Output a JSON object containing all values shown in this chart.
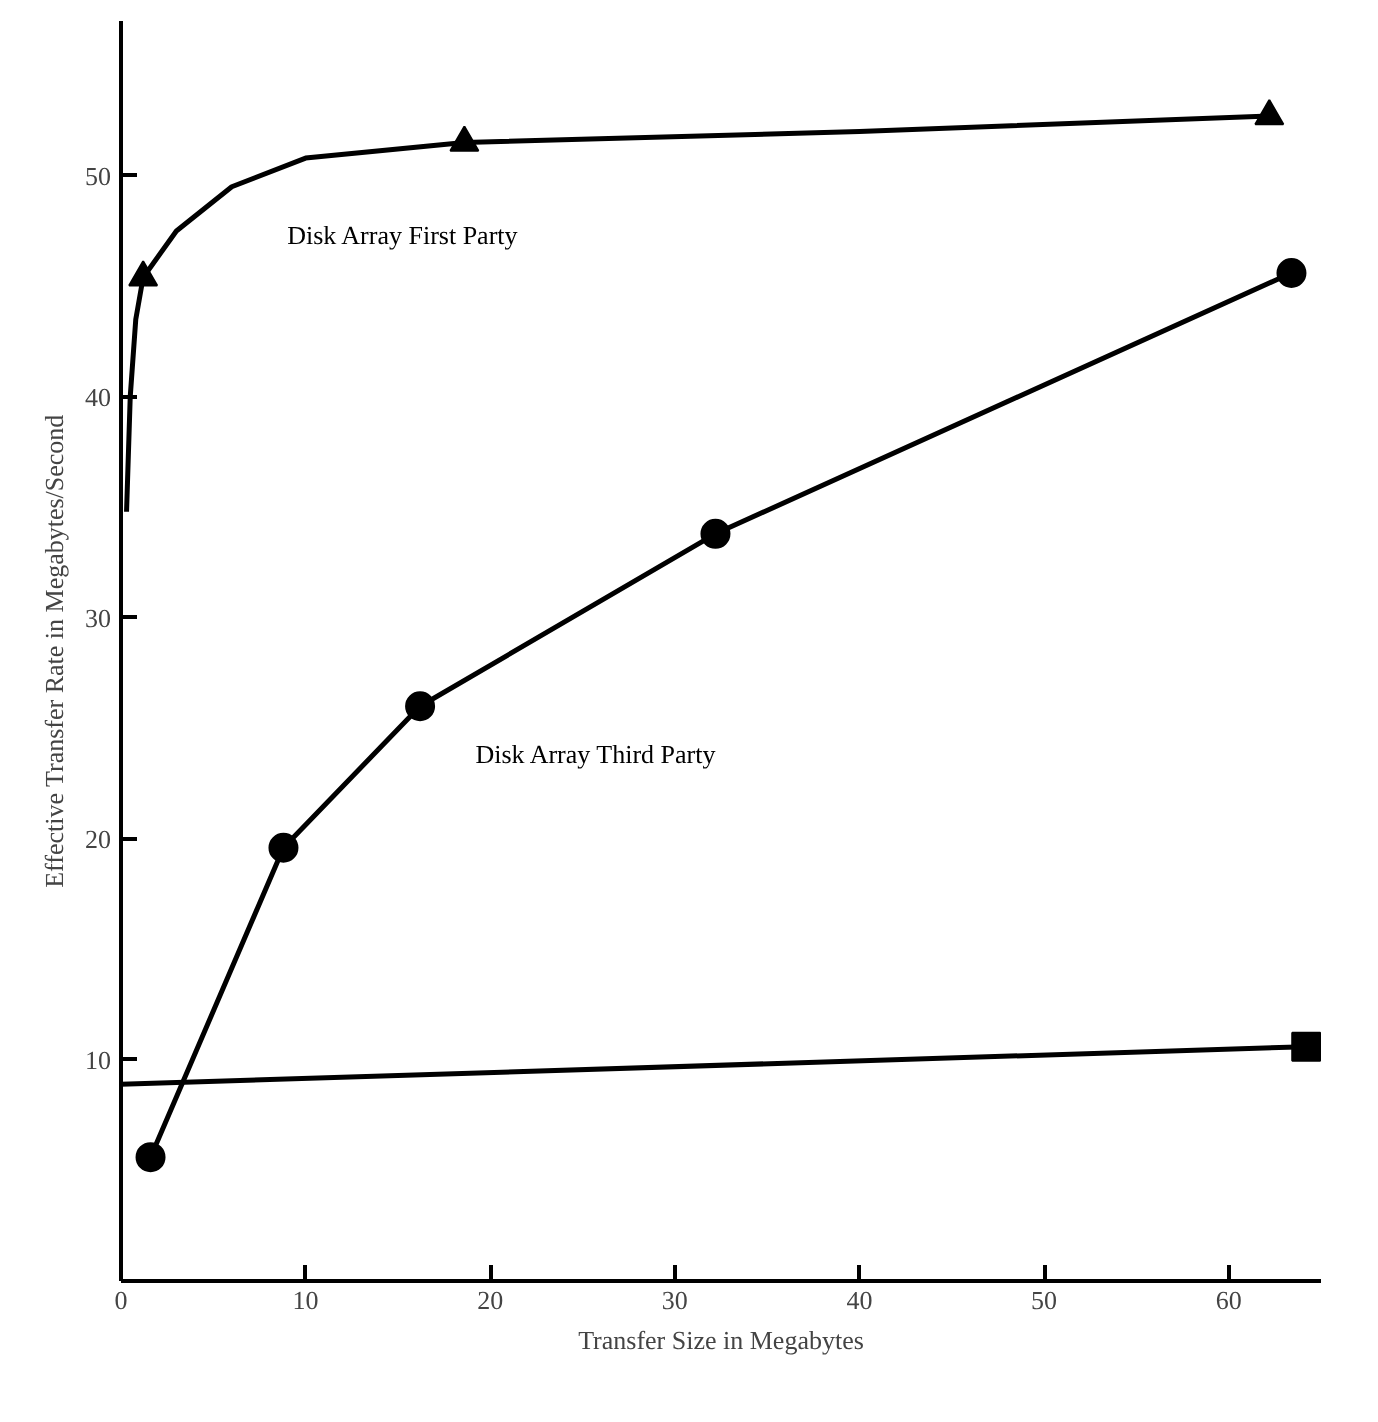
{
  "chart_data": {
    "type": "line",
    "xlabel": "Transfer Size in Megabytes",
    "ylabel": "Effective Transfer Rate in Megabytes/Second",
    "xlim": [
      0,
      65
    ],
    "ylim": [
      0,
      57
    ],
    "xticks": [
      0,
      10,
      20,
      30,
      40,
      50,
      60
    ],
    "yticks": [
      10,
      20,
      30,
      40,
      50
    ],
    "grid": false,
    "series": [
      {
        "name": "Disk Array First Party",
        "color": "#000000",
        "marker": "none",
        "x": [
          0.3,
          0.5,
          0.8,
          1.2,
          3,
          6,
          10,
          18.6,
          40,
          62.2
        ],
        "values": [
          34.8,
          40,
          43.5,
          45.4,
          47.5,
          49.5,
          50.8,
          51.5,
          52,
          52.7
        ]
      },
      {
        "type": "scatter",
        "color": "#000000",
        "marker": "triangle",
        "x": [
          1.2,
          18.6,
          62.2
        ],
        "values": [
          45.4,
          51.5,
          52.7
        ]
      },
      {
        "name": "Disk Array Third Party",
        "color": "#000000",
        "marker": "circle",
        "x": [
          1.6,
          8.8,
          16.2,
          32.2,
          63.4
        ],
        "values": [
          5.6,
          19.6,
          26,
          33.8,
          45.6
        ]
      },
      {
        "color": "#000000",
        "marker": "none",
        "x": [
          0,
          64.2
        ],
        "values": [
          8.9,
          10.6
        ]
      },
      {
        "type": "scatter",
        "color": "#000000",
        "marker": "square",
        "x": [
          64.2
        ],
        "values": [
          10.6
        ]
      }
    ]
  }
}
